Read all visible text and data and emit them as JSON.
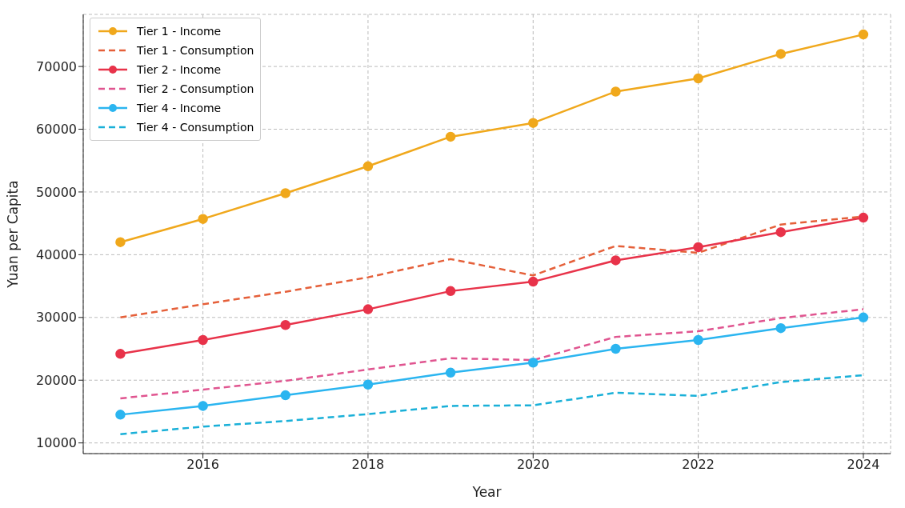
{
  "chart_data": {
    "type": "line",
    "xlabel": "Year",
    "ylabel": "Yuan per Capita",
    "x": [
      2015,
      2016,
      2017,
      2018,
      2019,
      2020,
      2021,
      2022,
      2023,
      2024
    ],
    "xlim": [
      2014.55,
      2024.33
    ],
    "xticks": [
      2016,
      2018,
      2020,
      2022,
      2024
    ],
    "ylim": [
      8300,
      78300
    ],
    "yticks": [
      10000,
      20000,
      30000,
      40000,
      50000,
      60000,
      70000
    ],
    "grid": true,
    "legend": "top left",
    "series": [
      {
        "name": "Tier 1 - Income",
        "color": "#f0a81c",
        "marker": "circle",
        "line_style": "solid",
        "values": [
          42000,
          45700,
          49800,
          54100,
          58800,
          61000,
          66000,
          68100,
          72000,
          75100
        ]
      },
      {
        "name": "Tier 1 - Consumption",
        "color": "#e5603a",
        "marker": "none",
        "line_style": "dashed",
        "values": [
          30000,
          32100,
          34100,
          36400,
          39300,
          36700,
          41400,
          40300,
          44800,
          46100
        ]
      },
      {
        "name": "Tier 2 - Income",
        "color": "#e8334a",
        "marker": "circle",
        "line_style": "solid",
        "values": [
          24200,
          26400,
          28800,
          31300,
          34200,
          35700,
          39100,
          41200,
          43600,
          45900
        ]
      },
      {
        "name": "Tier 2 - Consumption",
        "color": "#e05590",
        "marker": "none",
        "line_style": "dashed",
        "values": [
          17100,
          18500,
          19900,
          21700,
          23500,
          23200,
          26900,
          27800,
          29900,
          31300
        ]
      },
      {
        "name": "Tier 4 - Income",
        "color": "#2bb5f0",
        "marker": "circle",
        "line_style": "solid",
        "values": [
          14500,
          15900,
          17600,
          19300,
          21200,
          22800,
          25000,
          26400,
          28300,
          30000
        ]
      },
      {
        "name": "Tier 4 - Consumption",
        "color": "#1ab0d8",
        "marker": "none",
        "line_style": "dashed",
        "values": [
          11400,
          12600,
          13500,
          14600,
          15900,
          16000,
          18000,
          17500,
          19700,
          20800
        ]
      }
    ]
  }
}
